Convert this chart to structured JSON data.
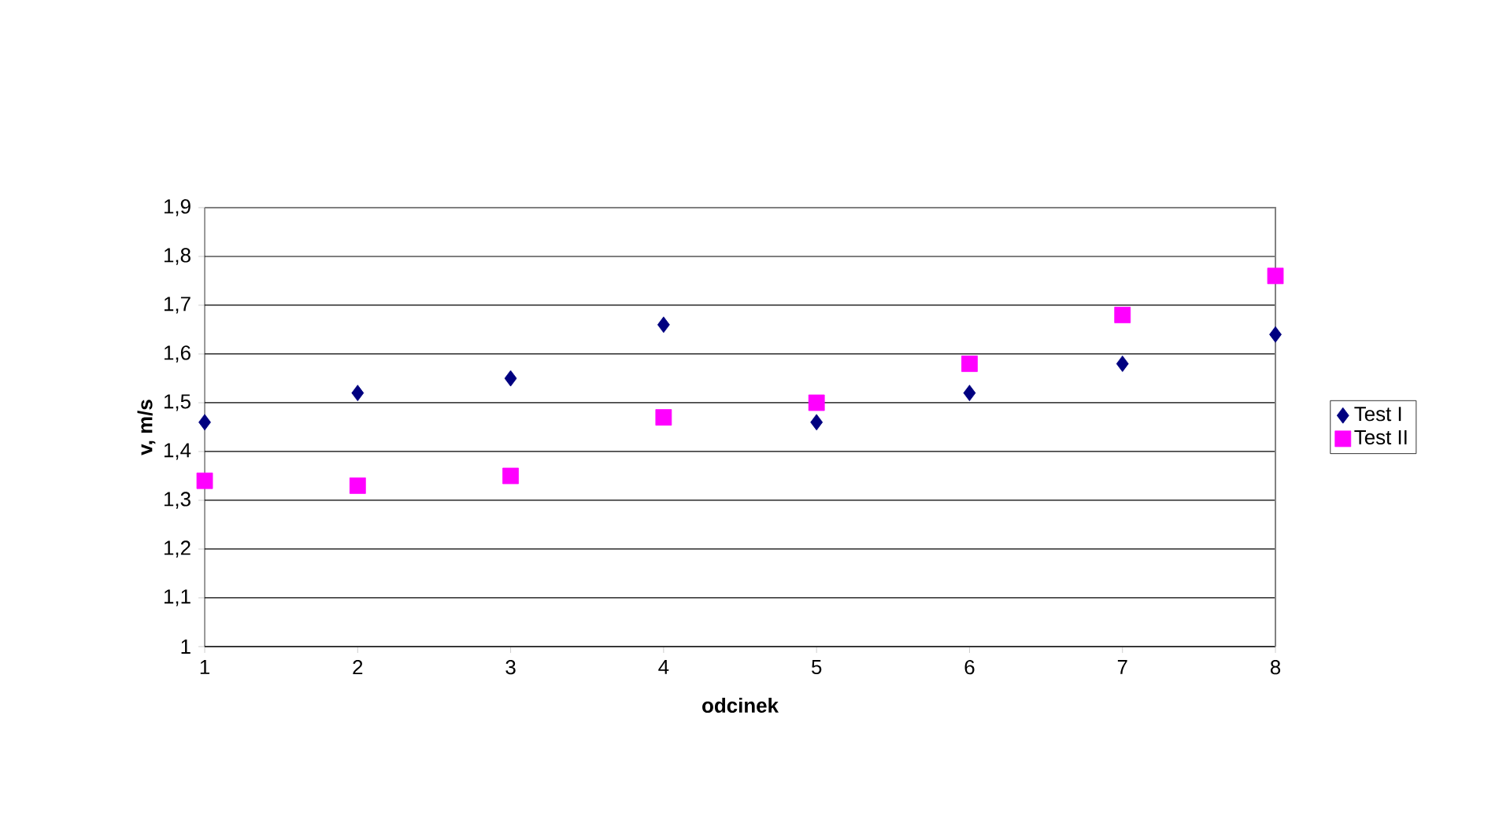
{
  "chart_data": {
    "type": "scatter",
    "xlabel": "odcinek",
    "ylabel": "v, m/s",
    "x": [
      1,
      2,
      3,
      4,
      5,
      6,
      7,
      8
    ],
    "series": [
      {
        "name": "Test I",
        "color": "#000080",
        "marker": "diamond",
        "values": [
          1.46,
          1.52,
          1.55,
          1.66,
          1.46,
          1.52,
          1.58,
          1.64
        ]
      },
      {
        "name": "Test II",
        "color": "#ff00ff",
        "marker": "square",
        "values": [
          1.34,
          1.33,
          1.35,
          1.47,
          1.5,
          1.58,
          1.68,
          1.76
        ]
      }
    ],
    "xlim": [
      1,
      8
    ],
    "xticks": [
      1,
      2,
      3,
      4,
      5,
      6,
      7,
      8
    ],
    "ylim": [
      1,
      1.9
    ],
    "yticks": [
      {
        "value": 1,
        "label": "1"
      },
      {
        "value": 1.1,
        "label": "1,1"
      },
      {
        "value": 1.2,
        "label": "1,2"
      },
      {
        "value": 1.3,
        "label": "1,3"
      },
      {
        "value": 1.4,
        "label": "1,4"
      },
      {
        "value": 1.5,
        "label": "1,5"
      },
      {
        "value": 1.6,
        "label": "1,6"
      },
      {
        "value": 1.7,
        "label": "1,7"
      },
      {
        "value": 1.8,
        "label": "1,8"
      },
      {
        "value": 1.9,
        "label": "1,9"
      }
    ],
    "grid": "y",
    "legend": "right"
  }
}
